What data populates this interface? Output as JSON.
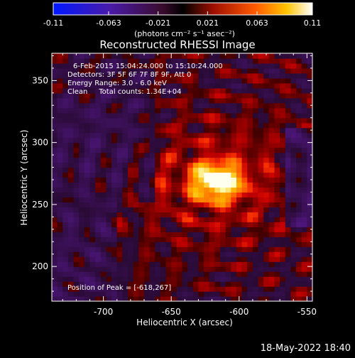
{
  "colorbar": {
    "tick_labels": [
      "-0.11",
      "-0.063",
      "-0.021",
      "0.021",
      "0.063",
      "0.11"
    ],
    "ticks": [
      -0.11,
      -0.063,
      -0.021,
      0.021,
      0.063,
      0.11
    ],
    "range": [
      -0.11,
      0.11
    ],
    "units_label": "(photons cm⁻² s⁻¹ asec⁻²)"
  },
  "title": "Reconstructed RHESSI Image",
  "info": {
    "line1": "6-Feb-2015 15:04:24.000 to 15:10:24.000",
    "line2": "Detectors: 3F 5F 6F 7F 8F 9F, Att 0",
    "line3": "Energy Range: 3.0 - 6.0 keV",
    "line4": "Clean     Total counts: 1.34E+04"
  },
  "peak_label": "Position of Peak = [-618,267]",
  "footer_timestamp": "18-May-2022 18:40",
  "chart_data": {
    "type": "heatmap",
    "title": "Reconstructed RHESSI Image",
    "xlabel": "Heliocentric X (arcsec)",
    "ylabel": "Heliocentric Y (arcsec)",
    "xlim": [
      -738,
      -546
    ],
    "ylim": [
      172,
      372
    ],
    "x_ticks": [
      -700,
      -650,
      -600,
      -550
    ],
    "x_tick_labels": [
      "-700",
      "-650",
      "-600",
      "-550"
    ],
    "y_ticks": [
      200,
      250,
      300,
      350
    ],
    "y_tick_labels": [
      "200",
      "250",
      "300",
      "350"
    ],
    "peak_position": [
      -618,
      267
    ],
    "colormap": "red-temperature",
    "colorbar_range": [
      -0.11,
      0.11
    ]
  }
}
